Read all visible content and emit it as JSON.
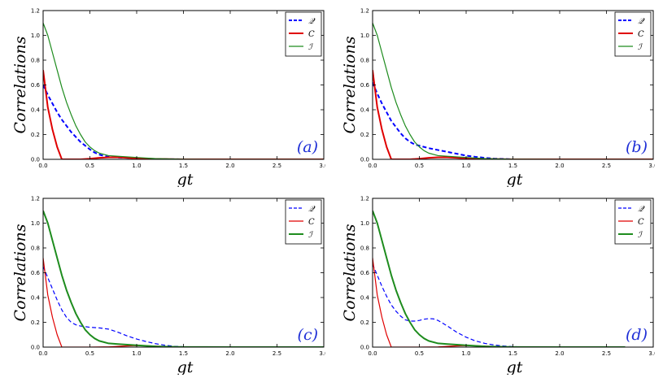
{
  "chart_data": [
    {
      "type": "line",
      "panel_label": "(a)",
      "xlabel": "gt",
      "ylabel": "Correlations",
      "xlim": [
        0,
        3.0
      ],
      "ylim": [
        0,
        1.2
      ],
      "x_ticks": [
        "0.0",
        "0.5",
        "1.0",
        "1.5",
        "2.0",
        "2.5",
        "3.0"
      ],
      "y_ticks": [
        "0.0",
        "0.2",
        "0.4",
        "0.6",
        "0.8",
        "1.0",
        "1.2"
      ],
      "legend_position": "top-right",
      "series": [
        {
          "name": "𝒬",
          "color": "#0000ff",
          "style": "dashed",
          "width": 2.0,
          "x": [
            0,
            0.05,
            0.1,
            0.15,
            0.2,
            0.25,
            0.3,
            0.35,
            0.4,
            0.45,
            0.5,
            0.55,
            0.6,
            0.65,
            0.7,
            0.8,
            0.9,
            1.0,
            1.1,
            1.2,
            1.5,
            2.0,
            2.5,
            3.0
          ],
          "y": [
            0.6,
            0.52,
            0.45,
            0.38,
            0.32,
            0.27,
            0.22,
            0.18,
            0.14,
            0.11,
            0.08,
            0.055,
            0.038,
            0.027,
            0.02,
            0.015,
            0.012,
            0.008,
            0.005,
            0.002,
            0.0,
            0.0,
            0.0,
            0.0
          ]
        },
        {
          "name": "C",
          "color": "#e00000",
          "style": "solid",
          "width": 2.0,
          "x": [
            0,
            0.05,
            0.1,
            0.15,
            0.2,
            0.25,
            0.3,
            0.4,
            0.5,
            0.6,
            0.7,
            0.8,
            0.9,
            1.0,
            1.2,
            1.5,
            2.0,
            2.5,
            3.0
          ],
          "y": [
            0.72,
            0.42,
            0.24,
            0.1,
            0.0,
            0.0,
            0.0,
            0.0,
            0.005,
            0.012,
            0.016,
            0.016,
            0.012,
            0.007,
            0.003,
            0.0,
            0.0,
            0.0,
            0.0
          ]
        },
        {
          "name": "ℐ",
          "color": "#1e8c1e",
          "style": "solid",
          "width": 1.2,
          "x": [
            0,
            0.05,
            0.1,
            0.15,
            0.2,
            0.25,
            0.3,
            0.35,
            0.4,
            0.45,
            0.5,
            0.55,
            0.6,
            0.7,
            0.8,
            0.9,
            1.0,
            1.2,
            1.5,
            2.0,
            2.5,
            3.0
          ],
          "y": [
            1.1,
            1.0,
            0.86,
            0.72,
            0.58,
            0.46,
            0.36,
            0.27,
            0.2,
            0.14,
            0.1,
            0.07,
            0.05,
            0.03,
            0.025,
            0.02,
            0.015,
            0.006,
            0.001,
            0.0,
            0.0,
            0.0
          ]
        }
      ]
    },
    {
      "type": "line",
      "panel_label": "(b)",
      "xlabel": "gt",
      "ylabel": "Correlations",
      "xlim": [
        0,
        3.0
      ],
      "ylim": [
        0,
        1.2
      ],
      "x_ticks": [
        "0.0",
        "0.5",
        "1.0",
        "1.5",
        "2.0",
        "2.5",
        "3.0"
      ],
      "y_ticks": [
        "0.0",
        "0.2",
        "0.4",
        "0.6",
        "0.8",
        "1.0",
        "1.2"
      ],
      "legend_position": "top-right",
      "series": [
        {
          "name": "𝒬",
          "color": "#0000ff",
          "style": "dashed",
          "width": 2.0,
          "x": [
            0,
            0.05,
            0.1,
            0.15,
            0.2,
            0.25,
            0.3,
            0.35,
            0.4,
            0.45,
            0.5,
            0.6,
            0.7,
            0.8,
            0.9,
            1.0,
            1.1,
            1.2,
            1.3,
            1.5,
            2.0,
            2.5,
            3.0
          ],
          "y": [
            0.62,
            0.53,
            0.45,
            0.38,
            0.31,
            0.26,
            0.21,
            0.17,
            0.14,
            0.12,
            0.11,
            0.09,
            0.075,
            0.06,
            0.045,
            0.03,
            0.02,
            0.012,
            0.006,
            0.0,
            0.0,
            0.0,
            0.0
          ]
        },
        {
          "name": "C",
          "color": "#e00000",
          "style": "solid",
          "width": 2.0,
          "x": [
            0,
            0.05,
            0.1,
            0.15,
            0.2,
            0.25,
            0.3,
            0.4,
            0.5,
            0.6,
            0.7,
            0.8,
            0.9,
            1.0,
            1.2,
            1.5,
            2.0,
            2.5,
            3.0
          ],
          "y": [
            0.72,
            0.42,
            0.24,
            0.1,
            0.0,
            0.0,
            0.0,
            0.0,
            0.005,
            0.012,
            0.016,
            0.016,
            0.012,
            0.007,
            0.003,
            0.0,
            0.0,
            0.0,
            0.0
          ]
        },
        {
          "name": "ℐ",
          "color": "#1e8c1e",
          "style": "solid",
          "width": 1.2,
          "x": [
            0,
            0.05,
            0.1,
            0.15,
            0.2,
            0.25,
            0.3,
            0.35,
            0.4,
            0.45,
            0.5,
            0.55,
            0.6,
            0.7,
            0.8,
            0.9,
            1.0,
            1.2,
            1.5,
            2.0,
            2.5,
            3.0
          ],
          "y": [
            1.1,
            1.0,
            0.86,
            0.72,
            0.58,
            0.46,
            0.36,
            0.27,
            0.2,
            0.14,
            0.1,
            0.07,
            0.05,
            0.03,
            0.025,
            0.02,
            0.015,
            0.006,
            0.001,
            0.0,
            0.0,
            0.0
          ]
        }
      ]
    },
    {
      "type": "line",
      "panel_label": "(c)",
      "xlabel": "gt",
      "ylabel": "Correlations",
      "xlim": [
        0,
        3.0
      ],
      "ylim": [
        0,
        1.2
      ],
      "x_ticks": [
        "0.0",
        "0.5",
        "1.0",
        "1.5",
        "2.0",
        "2.5",
        "3.0"
      ],
      "y_ticks": [
        "0.0",
        "0.2",
        "0.4",
        "0.6",
        "0.8",
        "1.0",
        "1.2"
      ],
      "legend_position": "top-right",
      "series": [
        {
          "name": "𝒬",
          "color": "#0000ff",
          "style": "dashed",
          "width": 1.2,
          "x": [
            0,
            0.05,
            0.1,
            0.15,
            0.2,
            0.25,
            0.3,
            0.35,
            0.4,
            0.45,
            0.5,
            0.6,
            0.7,
            0.8,
            0.9,
            1.0,
            1.1,
            1.2,
            1.3,
            1.4,
            1.5,
            1.6,
            2.0,
            2.5,
            3.0
          ],
          "y": [
            0.65,
            0.56,
            0.47,
            0.38,
            0.3,
            0.24,
            0.2,
            0.18,
            0.17,
            0.165,
            0.16,
            0.155,
            0.145,
            0.12,
            0.09,
            0.065,
            0.045,
            0.028,
            0.015,
            0.007,
            0.003,
            0.001,
            0.0,
            0.0,
            0.0
          ]
        },
        {
          "name": "C",
          "color": "#e00000",
          "style": "solid",
          "width": 1.2,
          "x": [
            0,
            0.05,
            0.1,
            0.15,
            0.2,
            0.25,
            0.3,
            0.5,
            0.7,
            0.8,
            0.9,
            1.0,
            1.1,
            1.2,
            1.3,
            1.5,
            2.0,
            2.5,
            3.0
          ],
          "y": [
            0.72,
            0.42,
            0.24,
            0.1,
            0.0,
            0.0,
            0.0,
            0.0,
            0.002,
            0.006,
            0.01,
            0.012,
            0.011,
            0.008,
            0.004,
            0.0,
            0.0,
            0.0,
            0.0
          ]
        },
        {
          "name": "ℐ",
          "color": "#1e8c1e",
          "style": "solid",
          "width": 2.0,
          "x": [
            0,
            0.05,
            0.1,
            0.15,
            0.2,
            0.25,
            0.3,
            0.35,
            0.4,
            0.45,
            0.5,
            0.55,
            0.6,
            0.7,
            0.8,
            0.9,
            1.0,
            1.2,
            1.5,
            2.0,
            2.5,
            3.0
          ],
          "y": [
            1.1,
            1.0,
            0.86,
            0.72,
            0.58,
            0.46,
            0.36,
            0.27,
            0.2,
            0.14,
            0.1,
            0.07,
            0.05,
            0.03,
            0.025,
            0.02,
            0.015,
            0.006,
            0.001,
            0.0,
            0.0,
            0.0
          ]
        }
      ]
    },
    {
      "type": "line",
      "panel_label": "(d)",
      "xlabel": "gt",
      "ylabel": "Correlations",
      "xlim": [
        0,
        3.0
      ],
      "ylim": [
        0,
        1.2
      ],
      "x_ticks": [
        "0.0",
        "0.5",
        "1.0",
        "1.5",
        "2.0",
        "2.5",
        "3.0"
      ],
      "y_ticks": [
        "0.0",
        "0.2",
        "0.4",
        "0.6",
        "0.8",
        "1.0",
        "1.2"
      ],
      "legend_position": "top-right",
      "series": [
        {
          "name": "𝒬",
          "color": "#0000ff",
          "style": "dashed",
          "width": 1.2,
          "x": [
            0,
            0.05,
            0.1,
            0.15,
            0.2,
            0.25,
            0.3,
            0.35,
            0.4,
            0.45,
            0.5,
            0.55,
            0.6,
            0.65,
            0.7,
            0.8,
            0.9,
            1.0,
            1.1,
            1.2,
            1.3,
            1.4,
            1.5,
            1.6,
            2.0,
            2.5,
            2.7
          ],
          "y": [
            0.67,
            0.58,
            0.49,
            0.41,
            0.34,
            0.29,
            0.25,
            0.22,
            0.21,
            0.21,
            0.215,
            0.225,
            0.23,
            0.228,
            0.215,
            0.17,
            0.12,
            0.08,
            0.05,
            0.03,
            0.017,
            0.009,
            0.004,
            0.001,
            0.0,
            0.0,
            0.0
          ]
        },
        {
          "name": "C",
          "color": "#e00000",
          "style": "solid",
          "width": 1.2,
          "x": [
            0,
            0.05,
            0.1,
            0.15,
            0.2,
            0.25,
            0.3,
            0.5,
            0.7,
            0.8,
            0.9,
            1.0,
            1.1,
            1.2,
            1.3,
            1.5,
            2.0,
            2.5,
            2.7
          ],
          "y": [
            0.72,
            0.42,
            0.24,
            0.1,
            0.0,
            0.0,
            0.0,
            0.0,
            0.002,
            0.006,
            0.01,
            0.012,
            0.011,
            0.008,
            0.004,
            0.0,
            0.0,
            0.0,
            0.0
          ]
        },
        {
          "name": "ℐ",
          "color": "#1e8c1e",
          "style": "solid",
          "width": 2.0,
          "x": [
            0,
            0.05,
            0.1,
            0.15,
            0.2,
            0.25,
            0.3,
            0.35,
            0.4,
            0.45,
            0.5,
            0.55,
            0.6,
            0.7,
            0.8,
            0.9,
            1.0,
            1.2,
            1.5,
            2.0,
            2.5,
            2.7
          ],
          "y": [
            1.1,
            1.0,
            0.86,
            0.72,
            0.58,
            0.46,
            0.36,
            0.27,
            0.2,
            0.14,
            0.1,
            0.07,
            0.05,
            0.03,
            0.025,
            0.02,
            0.015,
            0.006,
            0.001,
            0.0,
            0.0,
            0.0
          ]
        }
      ]
    }
  ]
}
